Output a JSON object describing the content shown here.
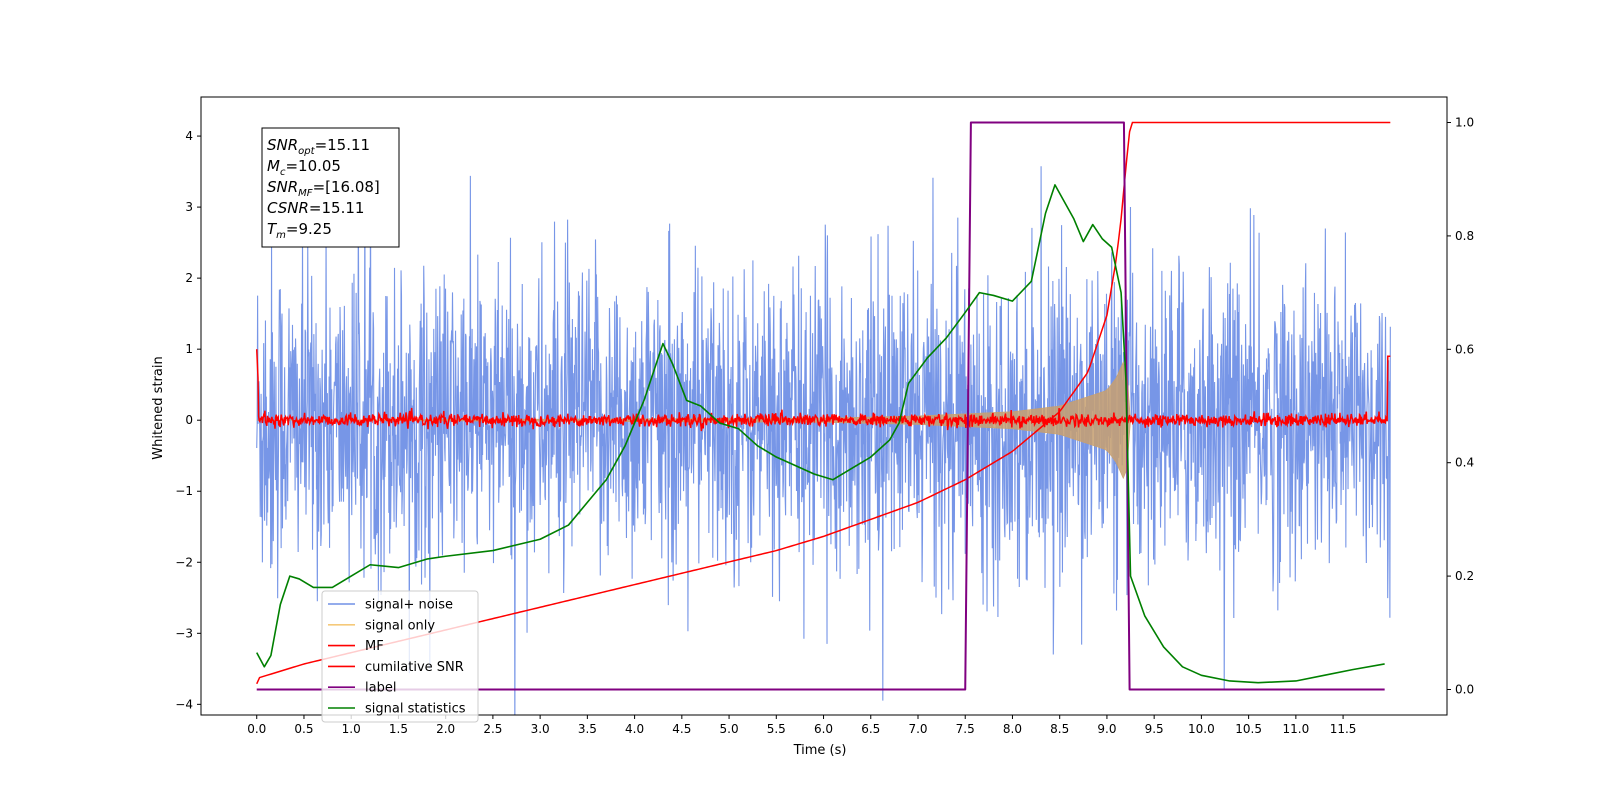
{
  "chart_data": {
    "type": "line",
    "xlabel": "Time (s)",
    "ylabel": "Whitened strain",
    "x_ticks": [
      "0.0",
      "0.5",
      "1.0",
      "1.5",
      "2.0",
      "2.5",
      "3.0",
      "3.5",
      "4.0",
      "4.5",
      "5.0",
      "5.5",
      "6.0",
      "6.5",
      "7.0",
      "7.5",
      "8.0",
      "8.5",
      "9.0",
      "9.5",
      "10.0",
      "10.5",
      "11.0",
      "11.5"
    ],
    "y_ticks": [
      "4",
      "3",
      "2",
      "1",
      "0",
      "−1",
      "−2",
      "−3",
      "−4"
    ],
    "y2_ticks": [
      "1.0",
      "0.8",
      "0.6",
      "0.4",
      "0.2",
      "0.0"
    ],
    "xlim": [
      -0.59,
      12.6
    ],
    "ylim": [
      -4.15,
      4.55
    ],
    "y2lim": [
      -0.045,
      1.045
    ],
    "annotation": {
      "lines": [
        {
          "sym": "SNR",
          "sub": "opt",
          "value": "=15.11"
        },
        {
          "sym": "M",
          "sub": "c",
          "value": "=10.05"
        },
        {
          "sym": "SNR",
          "sub": "MF",
          "value": "=[16.08]"
        },
        {
          "sym": "CSNR",
          "sub": "",
          "value": "=15.11"
        },
        {
          "sym": "T",
          "sub": "m",
          "value": "=9.25"
        }
      ]
    },
    "legend": {
      "placement": "lower-left",
      "entries": [
        {
          "label": "signal+ noise",
          "color": "#7090e6"
        },
        {
          "label": "signal only",
          "color": "#f5c97a"
        },
        {
          "label": "MF",
          "color": "#ff0000"
        },
        {
          "label": "cumilative SNR",
          "color": "#ff0000"
        },
        {
          "label": "label",
          "color": "#800080"
        },
        {
          "label": "signal statistics",
          "color": "#008000"
        }
      ]
    },
    "series": [
      {
        "name": "signal+ noise",
        "axis": "left",
        "color": "#7090e6",
        "noise_sigma": 1.05,
        "t_start": 0.0,
        "t_end": 12.0
      },
      {
        "name": "signal only",
        "axis": "left",
        "color": "#c8a06e",
        "envelope": {
          "t": [
            0.0,
            6.0,
            7.0,
            8.0,
            8.5,
            9.0,
            9.1,
            9.2,
            9.25
          ],
          "amp": [
            0.0,
            0.03,
            0.06,
            0.12,
            0.2,
            0.42,
            0.6,
            0.9,
            0.0
          ]
        }
      },
      {
        "name": "MF",
        "axis": "left",
        "color": "#ff0000",
        "noise_sigma": 0.045,
        "t_start": 0.0,
        "t_end": 12.0
      },
      {
        "name": "cumilative SNR",
        "axis": "right",
        "color": "#ff0000",
        "x": [
          0.0,
          0.01,
          0.5,
          1.0,
          1.5,
          2.0,
          2.5,
          3.0,
          3.5,
          4.0,
          4.5,
          5.0,
          5.5,
          6.0,
          6.5,
          7.0,
          7.5,
          8.0,
          8.5,
          8.8,
          9.0,
          9.1,
          9.15,
          9.2,
          9.25,
          12.0
        ],
        "y": [
          0.01,
          0.02,
          0.045,
          0.065,
          0.085,
          0.105,
          0.125,
          0.145,
          0.165,
          0.185,
          0.205,
          0.225,
          0.245,
          0.27,
          0.3,
          0.33,
          0.37,
          0.42,
          0.49,
          0.56,
          0.66,
          0.76,
          0.83,
          0.92,
          1.0,
          1.0
        ]
      },
      {
        "name": "label",
        "axis": "right",
        "color": "#800080",
        "x": [
          0.0,
          7.5,
          7.56,
          9.18,
          9.24,
          11.94
        ],
        "y": [
          0.0,
          0.0,
          1.0,
          1.0,
          0.0,
          0.0
        ]
      },
      {
        "name": "signal statistics",
        "axis": "right",
        "color": "#008000",
        "x": [
          0.0,
          0.08,
          0.15,
          0.25,
          0.35,
          0.45,
          0.6,
          0.8,
          1.0,
          1.2,
          1.5,
          1.8,
          2.0,
          2.5,
          3.0,
          3.3,
          3.5,
          3.7,
          3.9,
          4.1,
          4.3,
          4.4,
          4.55,
          4.7,
          4.9,
          5.1,
          5.3,
          5.5,
          5.7,
          5.9,
          6.1,
          6.3,
          6.5,
          6.7,
          6.8,
          6.9,
          7.1,
          7.3,
          7.5,
          7.65,
          7.8,
          8.0,
          8.2,
          8.35,
          8.45,
          8.55,
          8.65,
          8.75,
          8.85,
          8.95,
          9.05,
          9.15,
          9.2,
          9.25,
          9.4,
          9.6,
          9.8,
          10.0,
          10.3,
          10.6,
          11.0,
          11.3,
          11.6,
          11.94
        ],
        "y": [
          0.065,
          0.04,
          0.06,
          0.15,
          0.2,
          0.195,
          0.18,
          0.18,
          0.2,
          0.22,
          0.215,
          0.23,
          0.235,
          0.245,
          0.265,
          0.29,
          0.33,
          0.37,
          0.43,
          0.51,
          0.61,
          0.575,
          0.51,
          0.5,
          0.47,
          0.46,
          0.43,
          0.41,
          0.395,
          0.38,
          0.37,
          0.39,
          0.41,
          0.44,
          0.47,
          0.54,
          0.585,
          0.62,
          0.665,
          0.7,
          0.695,
          0.685,
          0.72,
          0.84,
          0.89,
          0.86,
          0.83,
          0.79,
          0.82,
          0.795,
          0.78,
          0.7,
          0.55,
          0.2,
          0.13,
          0.075,
          0.04,
          0.025,
          0.015,
          0.012,
          0.015,
          0.025,
          0.035,
          0.045
        ]
      }
    ]
  }
}
